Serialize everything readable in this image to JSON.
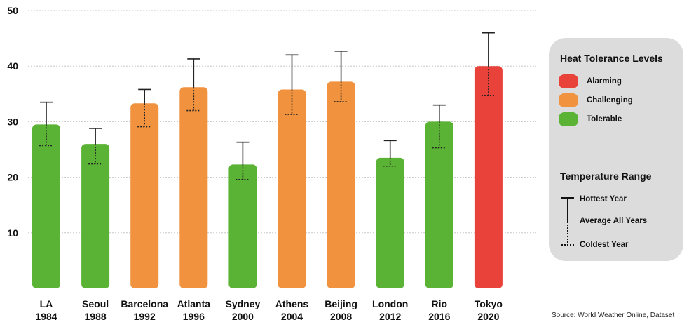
{
  "chart_data": {
    "type": "bar",
    "categories": [
      {
        "name": "LA",
        "year": "1984"
      },
      {
        "name": "Seoul",
        "year": "1988"
      },
      {
        "name": "Barcelona",
        "year": "1992"
      },
      {
        "name": "Atlanta",
        "year": "1996"
      },
      {
        "name": "Sydney",
        "year": "2000"
      },
      {
        "name": "Athens",
        "year": "2004"
      },
      {
        "name": "Beijing",
        "year": "2008"
      },
      {
        "name": "London",
        "year": "2012"
      },
      {
        "name": "Rio",
        "year": "2016"
      },
      {
        "name": "Tokyo",
        "year": "2020"
      }
    ],
    "values": [
      29.5,
      26,
      33.3,
      36.2,
      22.3,
      35.8,
      37.2,
      23.5,
      30,
      40
    ],
    "hottest": [
      33.5,
      28.8,
      35.8,
      41.3,
      26.3,
      42,
      42.7,
      26.6,
      33,
      46
    ],
    "coldest": [
      25.7,
      22.4,
      29.1,
      32,
      19.6,
      31.3,
      33.6,
      22,
      25.3,
      34.7
    ],
    "levels": [
      "tolerable",
      "tolerable",
      "challenging",
      "challenging",
      "tolerable",
      "challenging",
      "challenging",
      "tolerable",
      "tolerable",
      "alarming"
    ],
    "ylim": [
      0,
      50
    ],
    "yticks": [
      10,
      20,
      30,
      40,
      50
    ],
    "grid": true,
    "legend_placement": "right",
    "colors": {
      "alarming": "#e8423a",
      "challenging": "#f0923e",
      "tolerable": "#5ab334"
    }
  },
  "legend": {
    "heat_title": "Heat Tolerance Levels",
    "items": [
      {
        "key": "alarming",
        "label": "Alarming",
        "color": "#e8423a"
      },
      {
        "key": "challenging",
        "label": "Challenging",
        "color": "#f0923e"
      },
      {
        "key": "tolerable",
        "label": "Tolerable",
        "color": "#5ab334"
      }
    ],
    "range_title": "Temperature Range",
    "hottest_label": "Hottest Year",
    "average_label": "Average All Years",
    "coldest_label": "Coldest Year"
  },
  "source": "Source:  World Weather Online, Dataset"
}
